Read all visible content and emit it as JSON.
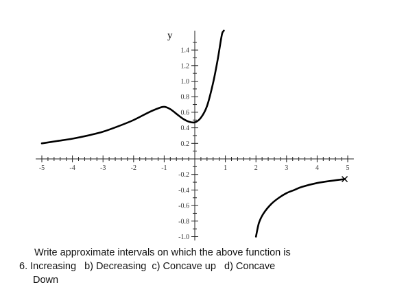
{
  "chart_data": {
    "type": "line",
    "title": "",
    "xlabel": "",
    "ylabel": "y",
    "xlim": [
      -5.2,
      5.2
    ],
    "ylim": [
      -1.05,
      1.65
    ],
    "x_ticks": [
      "-5",
      "-4",
      "-3",
      "-2",
      "-1",
      "1",
      "2",
      "3",
      "4",
      "5"
    ],
    "y_ticks": [
      "1.4",
      "1.2",
      "1.0",
      "0.8",
      "0.6",
      "0.4",
      "0.2",
      "-0.2",
      "-0.4",
      "-0.6",
      "-0.8",
      "-1.0"
    ],
    "grid": false,
    "series": [
      {
        "x": [
          -5,
          -4.5,
          -4,
          -3.5,
          -3,
          -2.5,
          -2,
          -1.5,
          -1.2,
          -1,
          -0.8,
          -0.6,
          -0.4,
          -0.2,
          0,
          0.2,
          0.4,
          0.6,
          0.75,
          0.85,
          0.9,
          0.95
        ],
        "y": [
          0.2,
          0.23,
          0.26,
          0.3,
          0.35,
          0.42,
          0.5,
          0.6,
          0.65,
          0.67,
          0.64,
          0.58,
          0.52,
          0.48,
          0.47,
          0.53,
          0.68,
          0.98,
          1.28,
          1.52,
          1.62,
          1.65
        ]
      },
      {
        "x": [
          2.0,
          2.1,
          2.25,
          2.5,
          2.75,
          3,
          3.25,
          3.5,
          4,
          4.5,
          4.9
        ],
        "y": [
          -1.0,
          -0.82,
          -0.7,
          -0.58,
          -0.5,
          -0.44,
          -0.4,
          -0.36,
          -0.31,
          -0.28,
          -0.26
        ]
      }
    ],
    "marker": {
      "x": 4.9,
      "y": -0.26,
      "symbol": "×"
    }
  },
  "question": {
    "line1": "Write approximate intervals on which the above function is",
    "line2": "6. Increasing   b) Decreasing  c) Concave up   d) Concave",
    "line3": "Down"
  }
}
